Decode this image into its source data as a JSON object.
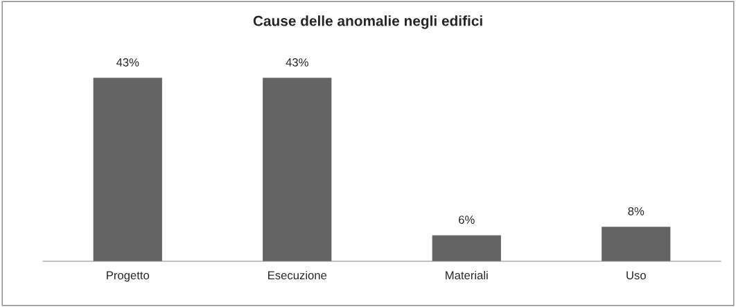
{
  "chart_data": {
    "type": "bar",
    "title": "Cause delle anomalie negli edifici",
    "categories": [
      "Progetto",
      "Esecuzione",
      "Materiali",
      "Uso"
    ],
    "values": [
      43,
      43,
      6,
      8
    ],
    "value_labels": [
      "43%",
      "43%",
      "6%",
      "8%"
    ],
    "color": "#646464"
  }
}
